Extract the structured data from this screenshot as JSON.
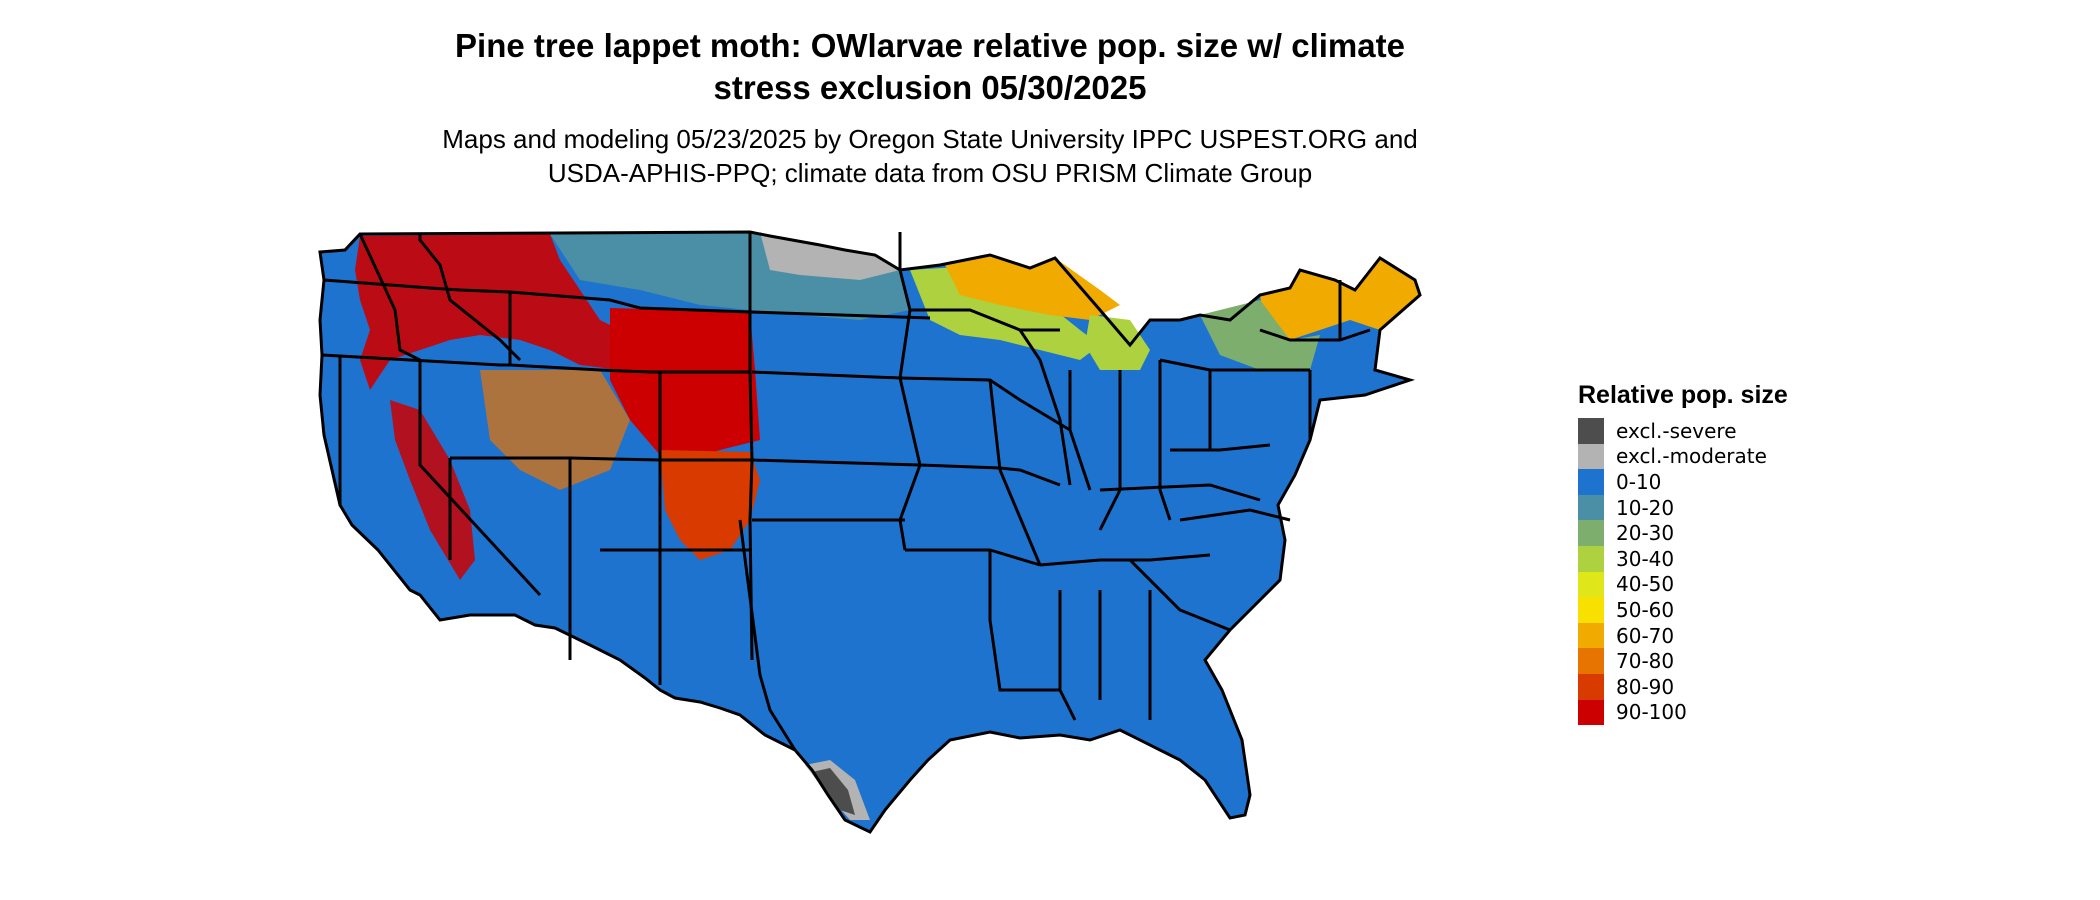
{
  "title": {
    "line1": "Pine tree lappet moth: OWlarvae relative pop. size w/ climate",
    "line2": "stress exclusion 05/30/2025"
  },
  "subtitle": {
    "line1": "Maps and modeling 05/23/2025 by Oregon State University IPPC USPEST.ORG and",
    "line2": "USDA-APHIS-PPQ; climate data from OSU PRISM Climate Group"
  },
  "legend": {
    "title": "Relative pop. size",
    "items": [
      {
        "label": "excl.-severe",
        "color": "#4d4d4d"
      },
      {
        "label": "excl.-moderate",
        "color": "#b3b3b3"
      },
      {
        "label": "0-10",
        "color": "#1e73cf"
      },
      {
        "label": "10-20",
        "color": "#4a8fa6"
      },
      {
        "label": "20-30",
        "color": "#7dae6e"
      },
      {
        "label": "30-40",
        "color": "#aed13f"
      },
      {
        "label": "40-50",
        "color": "#dfe61a"
      },
      {
        "label": "50-60",
        "color": "#f8e000"
      },
      {
        "label": "60-70",
        "color": "#f0aa00"
      },
      {
        "label": "70-80",
        "color": "#e87400"
      },
      {
        "label": "80-90",
        "color": "#d93a00"
      },
      {
        "label": "90-100",
        "color": "#cc0000"
      }
    ]
  }
}
